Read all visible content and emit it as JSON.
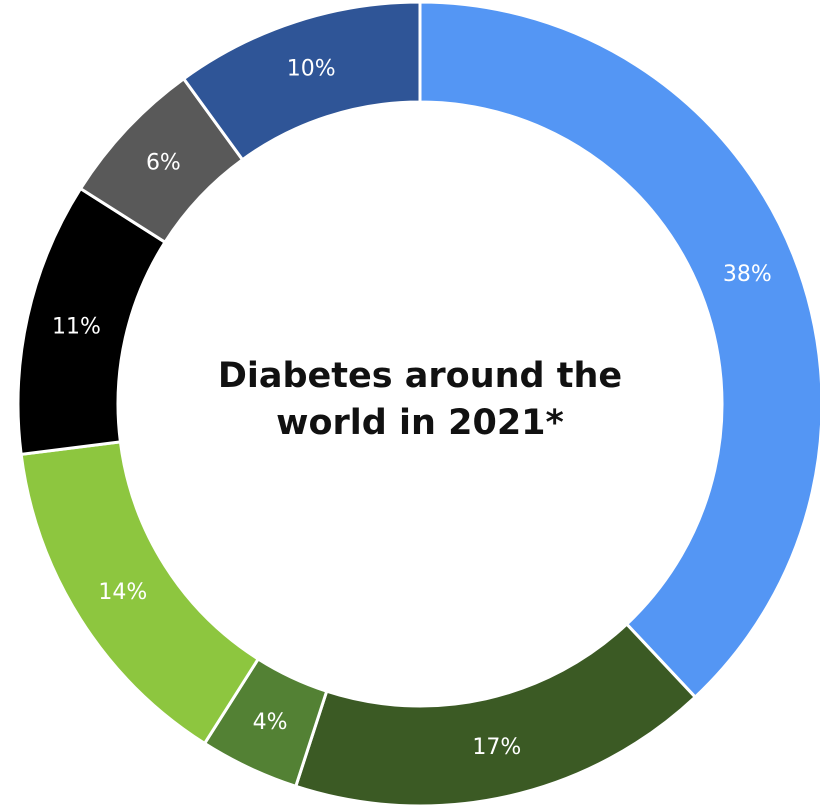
{
  "chart_data": {
    "type": "pie",
    "variant": "donut",
    "title_lines": [
      "Diabetes around the",
      "world in 2021*"
    ],
    "start_angle_deg": 0,
    "direction": "clockwise",
    "slices": [
      {
        "value": 38,
        "label": "38%",
        "color": "#5496F4"
      },
      {
        "value": 17,
        "label": "17%",
        "color": "#3B5A24"
      },
      {
        "value": 4,
        "label": "4%",
        "color": "#538134"
      },
      {
        "value": 14,
        "label": "14%",
        "color": "#8DC63F"
      },
      {
        "value": 11,
        "label": "11%",
        "color": "#000000"
      },
      {
        "value": 6,
        "label": "6%",
        "color": "#595959"
      },
      {
        "value": 10,
        "label": "10%",
        "color": "#2F5597"
      }
    ]
  }
}
